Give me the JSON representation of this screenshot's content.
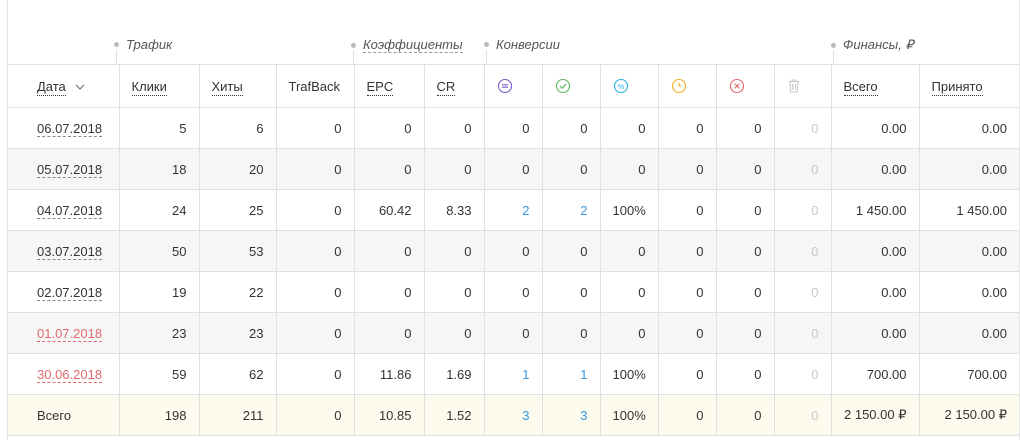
{
  "groups": {
    "traffic": "Трафик",
    "coefficients": "Коэффициенты",
    "conversions": "Конверсии",
    "finance": "Финансы, ₽"
  },
  "headers": {
    "date": "Дата",
    "clicks": "Клики",
    "hits": "Хиты",
    "trafback": "TrafBack",
    "epc": "EPC",
    "cr": "CR",
    "total": "Всего",
    "accepted": "Принято"
  },
  "icons": {
    "date_sort": "chevron-down-icon",
    "conv_all": "equals-circle-icon",
    "conv_approved": "check-circle-icon",
    "conv_percent": "percent-circle-icon",
    "conv_pending": "clock-circle-icon",
    "conv_rejected": "x-circle-icon",
    "conv_trash": "trash-icon"
  },
  "colors": {
    "conv_all": "#7b5cc9",
    "conv_approved": "#5cb85c",
    "conv_percent": "#2bb3e0",
    "conv_pending": "#f0ad1e",
    "conv_rejected": "#e36a6a",
    "conv_trash": "#c8c8c8",
    "link_blue": "#3b97de",
    "date_red": "#e36a6a",
    "total_row_bg": "#fdfaee"
  },
  "rows": [
    {
      "date": "06.07.2018",
      "clicks": "5",
      "hits": "6",
      "trafback": "0",
      "epc": "0",
      "cr": "0",
      "c_all": "0",
      "c_ok": "0",
      "c_pct": "0",
      "c_wait": "0",
      "c_rej": "0",
      "c_trash": "0",
      "fin_total": "0.00",
      "fin_accepted": "0.00"
    },
    {
      "date": "05.07.2018",
      "clicks": "18",
      "hits": "20",
      "trafback": "0",
      "epc": "0",
      "cr": "0",
      "c_all": "0",
      "c_ok": "0",
      "c_pct": "0",
      "c_wait": "0",
      "c_rej": "0",
      "c_trash": "0",
      "fin_total": "0.00",
      "fin_accepted": "0.00"
    },
    {
      "date": "04.07.2018",
      "clicks": "24",
      "hits": "25",
      "trafback": "0",
      "epc": "60.42",
      "cr": "8.33",
      "c_all": "2",
      "c_ok": "2",
      "c_pct": "100%",
      "c_wait": "0",
      "c_rej": "0",
      "c_trash": "0",
      "fin_total": "1 450.00",
      "fin_accepted": "1 450.00"
    },
    {
      "date": "03.07.2018",
      "clicks": "50",
      "hits": "53",
      "trafback": "0",
      "epc": "0",
      "cr": "0",
      "c_all": "0",
      "c_ok": "0",
      "c_pct": "0",
      "c_wait": "0",
      "c_rej": "0",
      "c_trash": "0",
      "fin_total": "0.00",
      "fin_accepted": "0.00"
    },
    {
      "date": "02.07.2018",
      "clicks": "19",
      "hits": "22",
      "trafback": "0",
      "epc": "0",
      "cr": "0",
      "c_all": "0",
      "c_ok": "0",
      "c_pct": "0",
      "c_wait": "0",
      "c_rej": "0",
      "c_trash": "0",
      "fin_total": "0.00",
      "fin_accepted": "0.00"
    },
    {
      "date": "01.07.2018",
      "clicks": "23",
      "hits": "23",
      "trafback": "0",
      "epc": "0",
      "cr": "0",
      "c_all": "0",
      "c_ok": "0",
      "c_pct": "0",
      "c_wait": "0",
      "c_rej": "0",
      "c_trash": "0",
      "fin_total": "0.00",
      "fin_accepted": "0.00"
    },
    {
      "date": "30.06.2018",
      "clicks": "59",
      "hits": "62",
      "trafback": "0",
      "epc": "11.86",
      "cr": "1.69",
      "c_all": "1",
      "c_ok": "1",
      "c_pct": "100%",
      "c_wait": "0",
      "c_rej": "0",
      "c_trash": "0",
      "fin_total": "700.00",
      "fin_accepted": "700.00"
    }
  ],
  "totals": {
    "label": "Всего",
    "clicks": "198",
    "hits": "211",
    "trafback": "0",
    "epc": "10.85",
    "cr": "1.52",
    "c_all": "3",
    "c_ok": "3",
    "c_pct": "100%",
    "c_wait": "0",
    "c_rej": "0",
    "c_trash": "0",
    "fin_total": "2 150.00 ₽",
    "fin_accepted": "2 150.00 ₽"
  }
}
